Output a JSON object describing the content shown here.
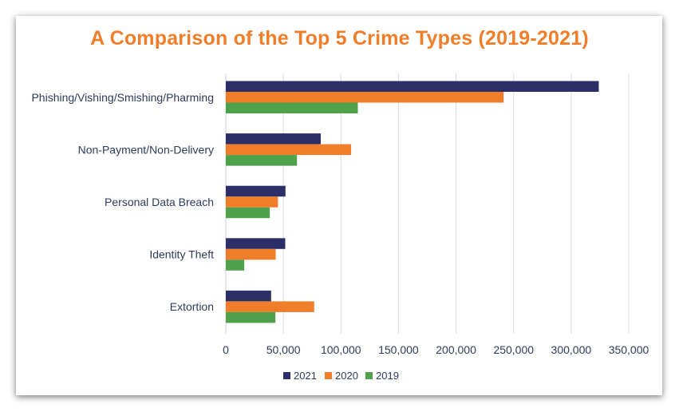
{
  "chart_data": {
    "type": "bar",
    "orientation": "horizontal",
    "title": "A Comparison of the Top 5 Crime Types (2019-2021)",
    "title_color": "#f07d2a",
    "categories": [
      "Phishing/Vishing/Smishing/Pharming",
      "Non-Payment/Non-Delivery",
      "Personal Data Breach",
      "Identity Theft",
      "Extortion"
    ],
    "series": [
      {
        "name": "2021",
        "color": "#2b2e67",
        "values": [
          323972,
          82478,
          51829,
          51629,
          39360
        ]
      },
      {
        "name": "2020",
        "color": "#f07d2a",
        "values": [
          241342,
          108869,
          45330,
          43330,
          76741
        ]
      },
      {
        "name": "2019",
        "color": "#4fa14b",
        "values": [
          114702,
          61832,
          38218,
          16053,
          43101
        ]
      }
    ],
    "xlim": [
      0,
      350000
    ],
    "xticks": [
      0,
      50000,
      100000,
      150000,
      200000,
      250000,
      300000,
      350000
    ],
    "xtick_labels": [
      "0",
      "50,000",
      "100,000",
      "150,000",
      "200,000",
      "250,000",
      "300,000",
      "350,000"
    ],
    "grid": true,
    "legend_position": "bottom",
    "xlabel": "",
    "ylabel": ""
  }
}
